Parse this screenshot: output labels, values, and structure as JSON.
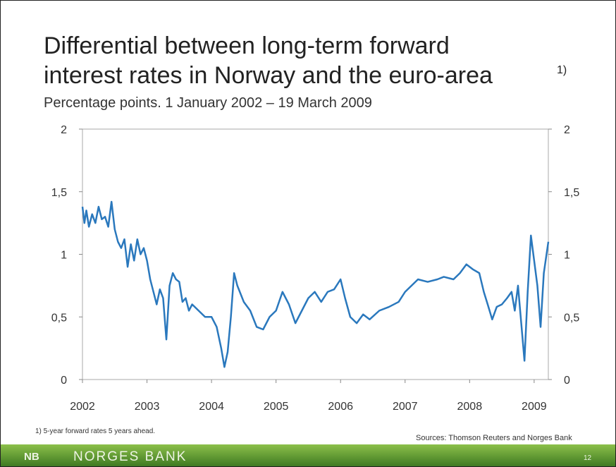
{
  "chart_data": {
    "type": "line",
    "title": [
      "Differential between long-term forward",
      "interest rates in Norway and the euro-area"
    ],
    "title_note": "1)",
    "subtitle": "Percentage points.  1 January 2002 – 19 March 2009",
    "x": [
      2002.0,
      2002.03,
      2002.06,
      2002.1,
      2002.15,
      2002.2,
      2002.25,
      2002.3,
      2002.35,
      2002.4,
      2002.45,
      2002.5,
      2002.55,
      2002.6,
      2002.65,
      2002.7,
      2002.75,
      2002.8,
      2002.85,
      2002.9,
      2002.95,
      2003.0,
      2003.05,
      2003.1,
      2003.15,
      2003.2,
      2003.25,
      2003.3,
      2003.35,
      2003.4,
      2003.45,
      2003.5,
      2003.55,
      2003.6,
      2003.65,
      2003.7,
      2003.8,
      2003.9,
      2004.0,
      2004.08,
      2004.15,
      2004.2,
      2004.25,
      2004.3,
      2004.35,
      2004.4,
      2004.5,
      2004.6,
      2004.7,
      2004.8,
      2004.9,
      2005.0,
      2005.1,
      2005.2,
      2005.3,
      2005.4,
      2005.5,
      2005.6,
      2005.7,
      2005.8,
      2005.9,
      2006.0,
      2006.07,
      2006.15,
      2006.25,
      2006.35,
      2006.45,
      2006.6,
      2006.75,
      2006.9,
      2007.0,
      2007.1,
      2007.2,
      2007.35,
      2007.5,
      2007.6,
      2007.75,
      2007.85,
      2007.95,
      2008.05,
      2008.15,
      2008.22,
      2008.28,
      2008.35,
      2008.42,
      2008.5,
      2008.58,
      2008.65,
      2008.7,
      2008.75,
      2008.8,
      2008.85,
      2008.9,
      2008.95,
      2009.0,
      2009.05,
      2009.1,
      2009.15,
      2009.22
    ],
    "values": [
      1.38,
      1.25,
      1.35,
      1.22,
      1.32,
      1.25,
      1.38,
      1.28,
      1.3,
      1.22,
      1.42,
      1.2,
      1.1,
      1.05,
      1.12,
      0.9,
      1.08,
      0.95,
      1.12,
      1.0,
      1.05,
      0.95,
      0.8,
      0.7,
      0.6,
      0.72,
      0.65,
      0.32,
      0.75,
      0.85,
      0.8,
      0.78,
      0.62,
      0.65,
      0.55,
      0.6,
      0.55,
      0.5,
      0.5,
      0.42,
      0.25,
      0.1,
      0.22,
      0.5,
      0.85,
      0.75,
      0.62,
      0.55,
      0.42,
      0.4,
      0.5,
      0.55,
      0.7,
      0.6,
      0.45,
      0.55,
      0.65,
      0.7,
      0.62,
      0.7,
      0.72,
      0.8,
      0.65,
      0.5,
      0.45,
      0.52,
      0.48,
      0.55,
      0.58,
      0.62,
      0.7,
      0.75,
      0.8,
      0.78,
      0.8,
      0.82,
      0.8,
      0.85,
      0.92,
      0.88,
      0.85,
      0.7,
      0.6,
      0.48,
      0.58,
      0.6,
      0.65,
      0.7,
      0.55,
      0.75,
      0.45,
      0.15,
      0.7,
      1.15,
      0.95,
      0.75,
      0.42,
      0.85,
      1.1
    ],
    "color": "#2a78bd",
    "xlim": [
      2002,
      2009.22
    ],
    "xticks": [
      2002,
      2003,
      2004,
      2005,
      2006,
      2007,
      2008,
      2009
    ],
    "ylim": [
      0,
      2
    ],
    "yticks": [
      0,
      {
        "value": 0.5,
        "label": "0,5"
      },
      1,
      {
        "value": 1.5,
        "label": "1,5"
      },
      2
    ],
    "y2lim": [
      0,
      2
    ],
    "y2ticks": [
      0,
      {
        "value": 0.5,
        "label": "0,5"
      },
      1,
      {
        "value": 1.5,
        "label": "1,5"
      },
      2
    ],
    "footnote": "1) 5-year forward rates 5 years ahead.",
    "source": "Sources: Thomson Reuters and Norges Bank"
  },
  "footer": {
    "logo": "NB",
    "bank": "NORGES BANK",
    "page": "12"
  }
}
